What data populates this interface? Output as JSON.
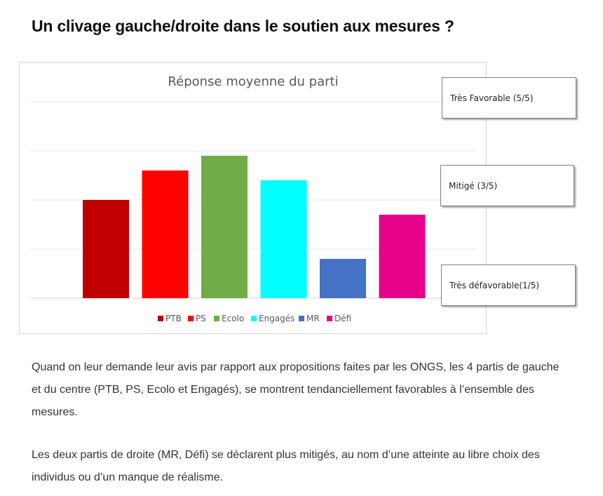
{
  "article": {
    "heading": "Un clivage gauche/droite dans le soutien aux mesures ?",
    "paragraph_1": "Quand on leur demande leur avis par rapport aux propositions faites par les ONGS, les 4 partis de gauche et du centre (PTB, PS, Ecolo et Engagés), se montrent tendanciellement favorables à l’ensemble des mesures.",
    "paragraph_2": "Les deux partis de droite (MR, Défi) se déclarent plus mitigés, au nom d’une atteinte au libre choix des individus ou d’un manque de réalisme."
  },
  "callouts": {
    "top": "Très Favorable (5/5)",
    "middle": "Mitigé  (3/5)",
    "bottom": "Très défavorable(1/5)"
  },
  "chart_data": {
    "type": "bar",
    "title": "Réponse moyenne du parti",
    "categories": [
      "PTB",
      "PS",
      "Ecolo",
      "Engagés",
      "MR",
      "Défi"
    ],
    "values": [
      3.0,
      3.6,
      3.9,
      3.4,
      1.8,
      2.7
    ],
    "colors": [
      "#c00000",
      "#ff0000",
      "#70ad47",
      "#00ffff",
      "#4472c4",
      "#e6008a"
    ],
    "ylim": [
      0,
      5
    ],
    "grid": true,
    "legend": "bottom"
  }
}
